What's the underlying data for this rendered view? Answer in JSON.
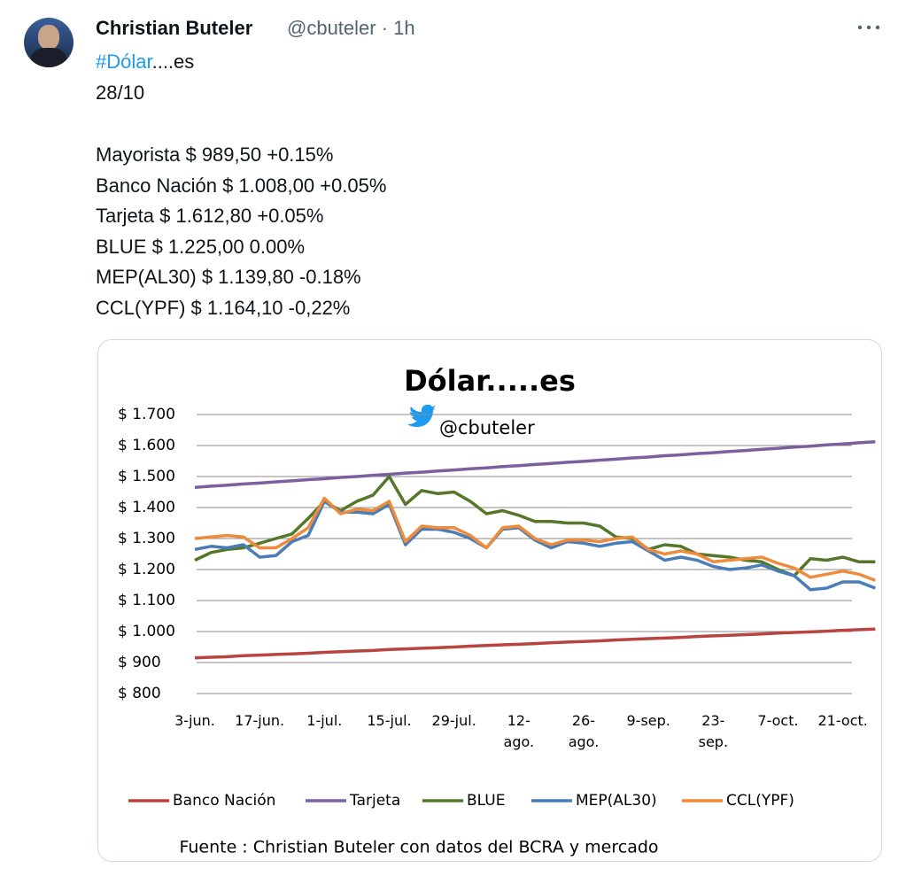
{
  "tweet": {
    "author": "Christian Buteler",
    "meta": "@cbuteler · 1h",
    "hashtag": "#Dólar",
    "hashtag_suffix": "....es",
    "date": "28/10",
    "lines": [
      "Mayorista $ 989,50 +0.15%",
      "Banco Nación $ 1.008,00 +0.05%",
      "Tarjeta $ 1.612,80 +0.05%",
      "BLUE $ 1.225,00 0.00%",
      "MEP(AL30) $ 1.139,80 -0.18%",
      "CCL(YPF) $ 1.164,10 -0,22%"
    ]
  },
  "chart_data": {
    "type": "line",
    "title": "Dólar.....es",
    "watermark": "@cbuteler",
    "source": "Fuente : Christian Buteler con datos del BCRA y mercado",
    "categories": [
      "3-jun.",
      null,
      null,
      null,
      "17-jun.",
      null,
      null,
      null,
      "1-jul.",
      null,
      null,
      null,
      "15-jul.",
      null,
      null,
      null,
      "29-jul.",
      null,
      null,
      null,
      "12-\nago.",
      null,
      null,
      null,
      "26-\nago.",
      null,
      null,
      null,
      "9-sep.",
      null,
      null,
      null,
      "23-\nsep.",
      null,
      null,
      null,
      "7-oct.",
      null,
      null,
      null,
      "21-oct.",
      null,
      null
    ],
    "ylim": [
      800,
      1700
    ],
    "yticks": [
      {
        "value": 800,
        "label": "$ 800"
      },
      {
        "value": 900,
        "label": "$ 900"
      },
      {
        "value": 1000,
        "label": "$ 1.000"
      },
      {
        "value": 1100,
        "label": "$ 1.100"
      },
      {
        "value": 1200,
        "label": "$ 1.200"
      },
      {
        "value": 1300,
        "label": "$ 1.300"
      },
      {
        "value": 1400,
        "label": "$ 1.400"
      },
      {
        "value": 1500,
        "label": "$ 1.500"
      },
      {
        "value": 1600,
        "label": "$ 1.600"
      },
      {
        "value": 1700,
        "label": "$ 1.700"
      }
    ],
    "grid": true,
    "legend": "bottom",
    "series": [
      {
        "name": "Banco Nación",
        "color": "#b8433f",
        "values": [
          915,
          917,
          919,
          922,
          924,
          926,
          928,
          930,
          933,
          935,
          937,
          939,
          942,
          944,
          946,
          948,
          950,
          953,
          955,
          957,
          959,
          961,
          964,
          966,
          968,
          970,
          973,
          975,
          977,
          979,
          981,
          984,
          986,
          988,
          990,
          992,
          995,
          997,
          999,
          1001,
          1004,
          1006,
          1008
        ]
      },
      {
        "name": "Tarjeta",
        "color": "#7d5fa0",
        "values": [
          1465,
          1469,
          1472,
          1476,
          1479,
          1483,
          1486,
          1490,
          1493,
          1497,
          1500,
          1504,
          1507,
          1511,
          1514,
          1518,
          1521,
          1525,
          1528,
          1532,
          1535,
          1539,
          1542,
          1546,
          1549,
          1553,
          1556,
          1560,
          1563,
          1567,
          1570,
          1574,
          1577,
          1581,
          1584,
          1588,
          1591,
          1595,
          1598,
          1602,
          1605,
          1609,
          1612
        ]
      },
      {
        "name": "BLUE",
        "color": "#55772a",
        "values": [
          1230,
          1255,
          1265,
          1270,
          1285,
          1300,
          1315,
          1365,
          1420,
          1390,
          1420,
          1440,
          1500,
          1410,
          1455,
          1445,
          1450,
          1420,
          1380,
          1390,
          1375,
          1355,
          1355,
          1350,
          1350,
          1340,
          1305,
          1300,
          1265,
          1280,
          1275,
          1250,
          1245,
          1240,
          1230,
          1225,
          1200,
          1180,
          1235,
          1230,
          1240,
          1225,
          1225
        ]
      },
      {
        "name": "MEP(AL30)",
        "color": "#4a7cb8",
        "values": [
          1265,
          1275,
          1270,
          1280,
          1240,
          1245,
          1290,
          1310,
          1420,
          1385,
          1385,
          1380,
          1410,
          1280,
          1330,
          1330,
          1320,
          1300,
          1270,
          1330,
          1335,
          1295,
          1270,
          1290,
          1285,
          1275,
          1285,
          1290,
          1260,
          1230,
          1240,
          1230,
          1210,
          1200,
          1205,
          1215,
          1195,
          1180,
          1135,
          1140,
          1160,
          1160,
          1140
        ]
      },
      {
        "name": "CCL(YPF)",
        "color": "#ef8c3c",
        "values": [
          1300,
          1305,
          1310,
          1305,
          1270,
          1270,
          1300,
          1335,
          1430,
          1380,
          1395,
          1390,
          1420,
          1290,
          1340,
          1335,
          1335,
          1310,
          1270,
          1335,
          1340,
          1300,
          1280,
          1295,
          1295,
          1290,
          1300,
          1305,
          1265,
          1250,
          1260,
          1250,
          1225,
          1230,
          1235,
          1240,
          1220,
          1205,
          1175,
          1185,
          1195,
          1185,
          1165
        ]
      }
    ]
  }
}
